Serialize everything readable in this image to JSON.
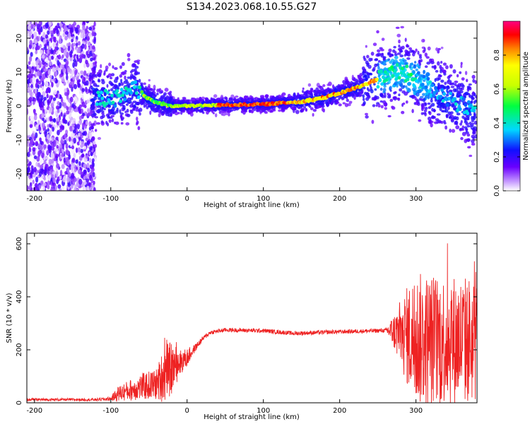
{
  "figure_title": "S134.2023.068.10.55.G27",
  "chart_data": [
    {
      "type": "heatmap",
      "title": "",
      "xlabel": "Height of straight line (km)",
      "ylabel": "Frequency (Hz)",
      "xlim": [
        -210,
        380
      ],
      "ylim": [
        -25,
        25
      ],
      "x_ticks": [
        -200,
        -100,
        0,
        100,
        200,
        300
      ],
      "y_ticks": [
        -20,
        -10,
        0,
        10,
        20
      ],
      "colorbar": {
        "label": "Normalized spectral amplitude",
        "range": [
          0.0,
          1.0
        ],
        "ticks": [
          0.0,
          0.2,
          0.4,
          0.6,
          0.8
        ],
        "colormap": [
          "#ffffff",
          "#b070ff",
          "#6a00ff",
          "#1010ff",
          "#00e0ff",
          "#00ff40",
          "#ffff00",
          "#ff8000",
          "#ff0000",
          "#ff0080"
        ]
      },
      "ridge": {
        "x": [
          -120,
          -100,
          -80,
          -70,
          -60,
          -50,
          -40,
          -30,
          -20,
          0,
          50,
          100,
          150,
          180,
          200,
          230,
          260,
          280,
          300,
          330,
          360,
          380
        ],
        "y": [
          3,
          2,
          3,
          5,
          4,
          2,
          1,
          0.5,
          0,
          0,
          0.3,
          0.5,
          1.3,
          2.5,
          3.8,
          6,
          9,
          10,
          8,
          4,
          0,
          -2
        ]
      }
    },
    {
      "type": "line",
      "title": "",
      "xlabel": "Height of straight line (km)",
      "ylabel": "SNR (10 * v/v)",
      "xlim": [
        -210,
        380
      ],
      "ylim": [
        0,
        640
      ],
      "x_ticks": [
        -200,
        -100,
        0,
        100,
        200,
        300
      ],
      "y_ticks": [
        0,
        200,
        400,
        600
      ],
      "series_color": "#ee2222",
      "envelope": {
        "x": [
          -210,
          -120,
          -100,
          -90,
          -60,
          -40,
          -30,
          -20,
          -10,
          0,
          10,
          20,
          30,
          50,
          100,
          140,
          200,
          260,
          270,
          290,
          300,
          320,
          340,
          360,
          380
        ],
        "y": [
          12,
          12,
          15,
          35,
          60,
          70,
          110,
          130,
          150,
          170,
          205,
          240,
          265,
          275,
          272,
          262,
          268,
          273,
          270,
          250,
          240,
          235,
          240,
          235,
          240
        ],
        "noise_amplitude": [
          5,
          5,
          8,
          30,
          50,
          60,
          110,
          100,
          50,
          35,
          15,
          10,
          8,
          8,
          8,
          8,
          8,
          8,
          60,
          200,
          250,
          260,
          250,
          250,
          240
        ]
      }
    }
  ]
}
